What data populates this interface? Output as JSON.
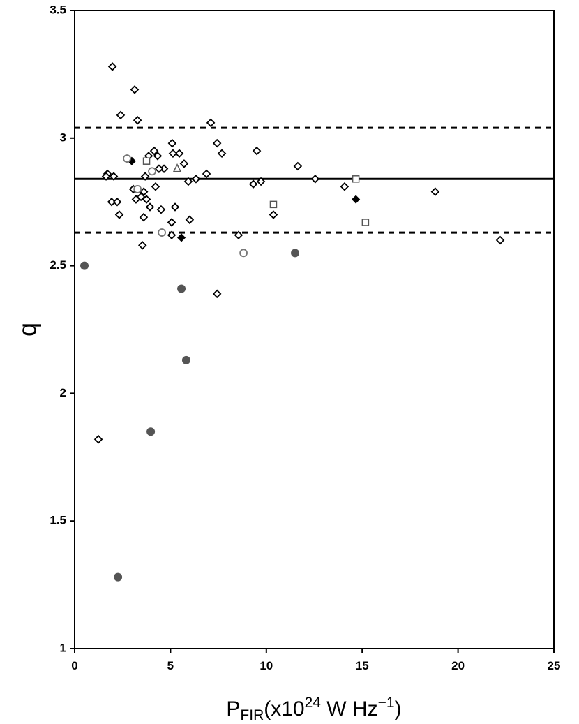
{
  "chart_data": {
    "type": "scatter",
    "ylabel": "q",
    "xlabel_parts": [
      {
        "text": "P",
        "style": "normal"
      },
      {
        "text": "FIR",
        "style": "sub"
      },
      {
        "text": "(x10",
        "style": "normal"
      },
      {
        "text": "24",
        "style": "sup"
      },
      {
        "text": " W Hz",
        "style": "normal"
      },
      {
        "text": "−1",
        "style": "sup"
      },
      {
        "text": ")",
        "style": "normal"
      }
    ],
    "xlim": [
      0,
      25
    ],
    "xticks": [
      0,
      5,
      10,
      15,
      20,
      25
    ],
    "ylim": [
      1,
      3.5
    ],
    "yticks": [
      1,
      1.5,
      2,
      2.5,
      3,
      3.5
    ],
    "hlines": [
      {
        "value": 2.84,
        "style": "solid"
      },
      {
        "value": 3.04,
        "style": "dashed"
      },
      {
        "value": 2.63,
        "style": "dashed"
      }
    ],
    "series": [
      {
        "marker": "diamond",
        "color": "#000000",
        "x": [
          1.97,
          3.13,
          2.4,
          3.28,
          7.1,
          7.43,
          5.09,
          4.15,
          5.46,
          5.13,
          7.68,
          9.5,
          3.86,
          4.33,
          11.64,
          4.66,
          4.4,
          5.71,
          6.88,
          1.71,
          2.04,
          1.64,
          3.68,
          6.33,
          5.93,
          12.55,
          9.72,
          9.32,
          4.22,
          14.08,
          18.81,
          3.06,
          3.61,
          3.46,
          3.2,
          3.75,
          1.93,
          2.22,
          3.93,
          5.24,
          4.51,
          10.37,
          2.33,
          3.6,
          6.0,
          5.06,
          5.06,
          8.55,
          22.2,
          3.54,
          7.43,
          1.24
        ],
        "values": [
          3.28,
          3.19,
          3.09,
          3.07,
          3.06,
          2.98,
          2.98,
          2.95,
          2.94,
          2.94,
          2.94,
          2.95,
          2.93,
          2.93,
          2.89,
          2.88,
          2.88,
          2.9,
          2.86,
          2.86,
          2.85,
          2.85,
          2.85,
          2.84,
          2.83,
          2.84,
          2.83,
          2.82,
          2.81,
          2.81,
          2.79,
          2.8,
          2.79,
          2.77,
          2.76,
          2.76,
          2.75,
          2.75,
          2.73,
          2.73,
          2.72,
          2.7,
          2.7,
          2.69,
          2.68,
          2.67,
          2.62,
          2.62,
          2.6,
          2.58,
          2.39,
          1.82
        ]
      },
      {
        "marker": "diamond-filled",
        "color": "#000000",
        "x": [
          2.98,
          5.57,
          14.67
        ],
        "values": [
          2.91,
          2.61,
          2.76
        ]
      },
      {
        "marker": "circle",
        "color": "#777777",
        "x": [
          2.73,
          4.04,
          4.55,
          8.81,
          3.28
        ],
        "values": [
          2.92,
          2.87,
          2.63,
          2.55,
          2.8
        ]
      },
      {
        "marker": "circle-filled",
        "color": "#555555",
        "x": [
          0.51,
          5.57,
          5.82,
          3.97,
          2.26,
          11.5
        ],
        "values": [
          2.5,
          2.41,
          2.13,
          1.85,
          1.28,
          2.55
        ]
      },
      {
        "marker": "square",
        "color": "#555555",
        "x": [
          3.75,
          14.67,
          10.37,
          15.17
        ],
        "values": [
          2.91,
          2.84,
          2.74,
          2.67
        ]
      },
      {
        "marker": "triangle",
        "color": "#555555",
        "x": [
          5.35
        ],
        "values": [
          2.88
        ]
      }
    ]
  }
}
